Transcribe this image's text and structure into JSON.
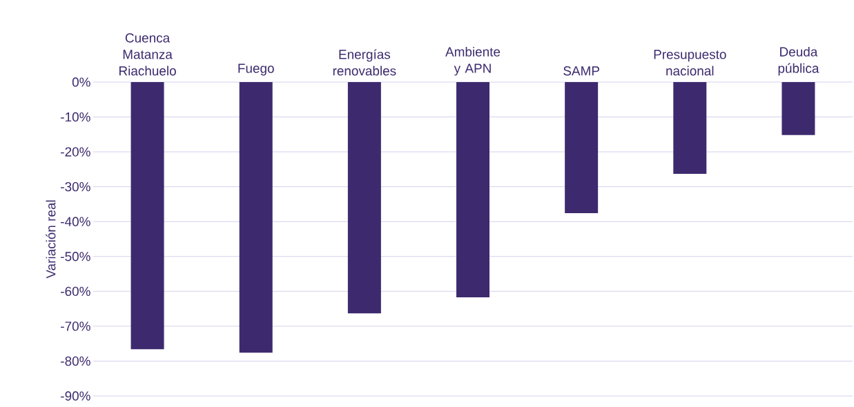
{
  "chart_data": {
    "type": "bar",
    "ylabel": "Variación real",
    "categories": [
      "Cuenca Matanza Riachuelo",
      "Fuego",
      "Energías renovables",
      "Ambiente y APN",
      "SAMP",
      "Presupuesto nacional",
      "Deuda pública"
    ],
    "values": [
      -76.6,
      -77.6,
      -66.3,
      -61.7,
      -37.6,
      -26.3,
      -15.2
    ],
    "color": "#3d2a6e",
    "ylim": [
      -90,
      0
    ],
    "yticks": [
      {
        "value": 0,
        "label": "0%"
      },
      {
        "value": -10,
        "label": "-10%"
      },
      {
        "value": -20,
        "label": "-20%"
      },
      {
        "value": -30,
        "label": "-30%"
      },
      {
        "value": -40,
        "label": "-40%"
      },
      {
        "value": -50,
        "label": "-50%"
      },
      {
        "value": -60,
        "label": "-60%"
      },
      {
        "value": -70,
        "label": "-70%"
      },
      {
        "value": -80,
        "label": "-80%"
      },
      {
        "value": -90,
        "label": "-90%"
      }
    ],
    "grid": "y"
  }
}
